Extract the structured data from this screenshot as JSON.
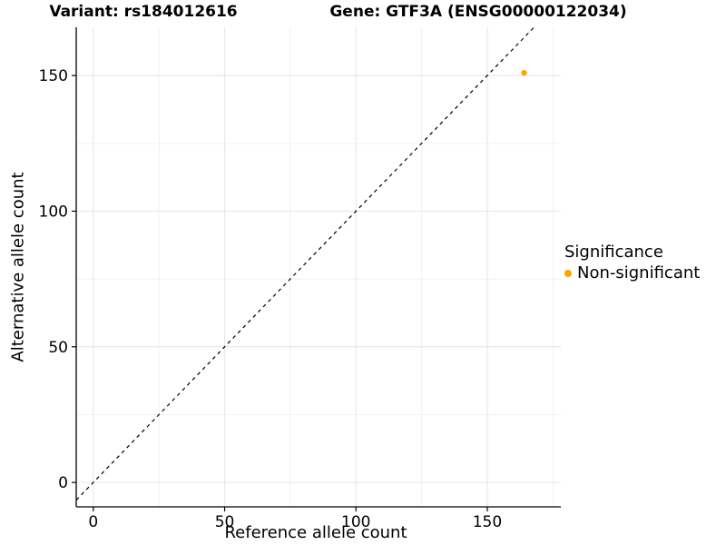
{
  "chart_data": {
    "type": "scatter",
    "title_left": "Variant: rs184012616",
    "title_right": "Gene: GTF3A (ENSG00000122034)",
    "xlabel": "Reference allele count",
    "ylabel": "Alternative allele count",
    "xlim": [
      -6.5,
      178
    ],
    "ylim": [
      -9,
      167.8
    ],
    "x_ticks": [
      0,
      50,
      100,
      150
    ],
    "y_ticks": [
      0,
      50,
      100,
      150
    ],
    "x_minor_grid": [
      25,
      75,
      125,
      175
    ],
    "y_minor_grid": [
      25,
      75,
      125
    ],
    "grid": true,
    "identity_line": {
      "equation": "y = x",
      "style": "dashed",
      "color": "#000000"
    },
    "series": [
      {
        "name": "Non-significant",
        "color": "#FFA500",
        "points": [
          {
            "x": 164,
            "y": 151
          }
        ]
      }
    ],
    "legend": {
      "position": "right",
      "title": "Significance",
      "items": [
        {
          "label": "Non-significant",
          "color": "#FFA500"
        }
      ]
    },
    "colors": {
      "background": "#FFFFFF",
      "major_grid": "#E6E6E6",
      "minor_grid": "#F0F0F0",
      "axis": "#000000",
      "text": "#000000"
    }
  }
}
